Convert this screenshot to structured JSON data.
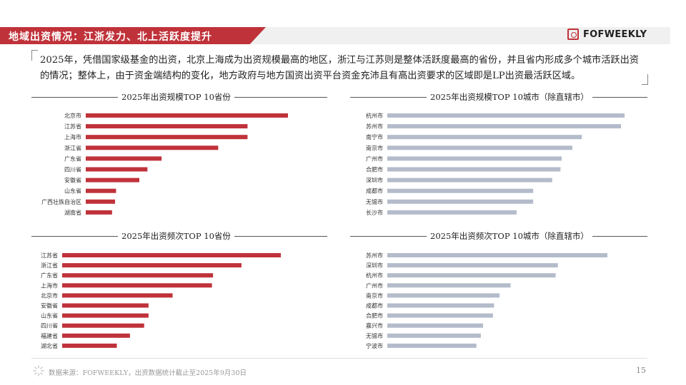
{
  "header": {
    "title": "地域出资情况：江浙发力、北上活跃度提升",
    "logo_text": "FOFWEEKLY",
    "brand_color": "#c0323a"
  },
  "summary": "2025年，凭借国家级基金的出资，北京上海成为出资规模最高的地区，浙江与江苏则是整体活跃度最高的省份，并且省内形成多个城市活跃出资的情况；整体上，由于资金端结构的变化，地方政府与地方国资出资平台资金充沛且有高出资要求的区域即是LP出资最活跃区域。",
  "footer": {
    "source": "数据来源：FOFWEEKLY，出资数据统计截止至2025年9月30日",
    "page_number": "15",
    "icon": "sunburst-icon"
  },
  "chart_data": [
    {
      "type": "bar",
      "orientation": "horizontal",
      "title": "2025年出资规模TOP 10省份",
      "color": "#c0323a",
      "categories": [
        "北京市",
        "江苏省",
        "上海市",
        "浙江省",
        "广东省",
        "四川省",
        "安徽省",
        "山东省",
        "广西壮族自治区",
        "湖南省"
      ],
      "values": [
        100,
        80,
        80,
        65.5,
        37.5,
        30.5,
        26.5,
        15,
        14.5,
        13
      ]
    },
    {
      "type": "bar",
      "orientation": "horizontal",
      "title": "2025年出资规模TOP 10城市（除直辖市）",
      "color": "#b4bccb",
      "categories": [
        "杭州市",
        "苏州市",
        "南宁市",
        "南京市",
        "广州市",
        "合肥市",
        "深圳市",
        "成都市",
        "无锡市",
        "长沙市"
      ],
      "values": [
        100,
        98.5,
        82,
        78,
        73.5,
        73,
        69.5,
        61.5,
        61.5,
        54.5
      ]
    },
    {
      "type": "bar",
      "orientation": "horizontal",
      "title": "2025年出资频次TOP 10省份",
      "color": "#c0323a",
      "categories": [
        "江苏省",
        "浙江省",
        "广东省",
        "上海市",
        "北京市",
        "安徽省",
        "山东省",
        "四川省",
        "福建省",
        "湖北省"
      ],
      "values": [
        100,
        82,
        69,
        68.5,
        50.5,
        39.5,
        39.5,
        37.5,
        31,
        25
      ]
    },
    {
      "type": "bar",
      "orientation": "horizontal",
      "title": "2025年出资频次TOP 10城市（除直辖市）",
      "color": "#b4bccb",
      "categories": [
        "苏州市",
        "深圳市",
        "杭州市",
        "广州市",
        "南京市",
        "成都市",
        "合肥市",
        "嘉兴市",
        "无锡市",
        "宁波市"
      ],
      "values": [
        100,
        77.5,
        76.5,
        56,
        51,
        48.5,
        48,
        43.5,
        42.5,
        40.5
      ]
    }
  ]
}
